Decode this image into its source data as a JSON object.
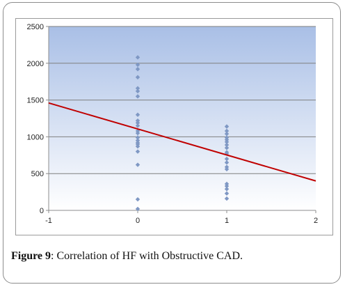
{
  "chart_data": {
    "type": "scatter",
    "title": "",
    "xlabel": "",
    "ylabel": "",
    "xlim": [
      -1,
      2
    ],
    "ylim": [
      0,
      2500
    ],
    "xticks": [
      "-1",
      "0",
      "1",
      "2"
    ],
    "yticks": [
      "0",
      "500",
      "1000",
      "1500",
      "2000",
      "2500"
    ],
    "grid": true,
    "series": [
      {
        "points": [
          {
            "x": 0,
            "y": 2080
          },
          {
            "x": 0,
            "y": 1980
          },
          {
            "x": 0,
            "y": 1920
          },
          {
            "x": 0,
            "y": 1810
          },
          {
            "x": 0,
            "y": 1660
          },
          {
            "x": 0,
            "y": 1620
          },
          {
            "x": 0,
            "y": 1550
          },
          {
            "x": 0,
            "y": 1300
          },
          {
            "x": 0,
            "y": 1220
          },
          {
            "x": 0,
            "y": 1190
          },
          {
            "x": 0,
            "y": 1150
          },
          {
            "x": 0,
            "y": 1080
          },
          {
            "x": 0,
            "y": 1050
          },
          {
            "x": 0,
            "y": 990
          },
          {
            "x": 0,
            "y": 950
          },
          {
            "x": 0,
            "y": 920
          },
          {
            "x": 0,
            "y": 900
          },
          {
            "x": 0,
            "y": 870
          },
          {
            "x": 0,
            "y": 800
          },
          {
            "x": 0,
            "y": 620
          },
          {
            "x": 0,
            "y": 150
          },
          {
            "x": 0,
            "y": 20
          },
          {
            "x": 1,
            "y": 1140
          },
          {
            "x": 1,
            "y": 1080
          },
          {
            "x": 1,
            "y": 1040
          },
          {
            "x": 1,
            "y": 990
          },
          {
            "x": 1,
            "y": 960
          },
          {
            "x": 1,
            "y": 930
          },
          {
            "x": 1,
            "y": 890
          },
          {
            "x": 1,
            "y": 850
          },
          {
            "x": 1,
            "y": 790
          },
          {
            "x": 1,
            "y": 770
          },
          {
            "x": 1,
            "y": 700
          },
          {
            "x": 1,
            "y": 650
          },
          {
            "x": 1,
            "y": 590
          },
          {
            "x": 1,
            "y": 560
          },
          {
            "x": 1,
            "y": 360
          },
          {
            "x": 1,
            "y": 330
          },
          {
            "x": 1,
            "y": 290
          },
          {
            "x": 1,
            "y": 230
          },
          {
            "x": 1,
            "y": 160
          }
        ]
      }
    ],
    "trendline": {
      "x": [
        -1,
        2
      ],
      "y": [
        1460,
        400
      ]
    },
    "colors": {
      "marker": "#7f98c4",
      "trendline": "#c00000",
      "plot_bg_top": "#a9bfe6",
      "plot_bg_bottom": "#ffffff",
      "gridline": "#7f7f7f",
      "axis": "#8c8c8c"
    }
  },
  "caption": {
    "label": "Figure 9",
    "text": ": Correlation of HF with Obstructive CAD."
  }
}
